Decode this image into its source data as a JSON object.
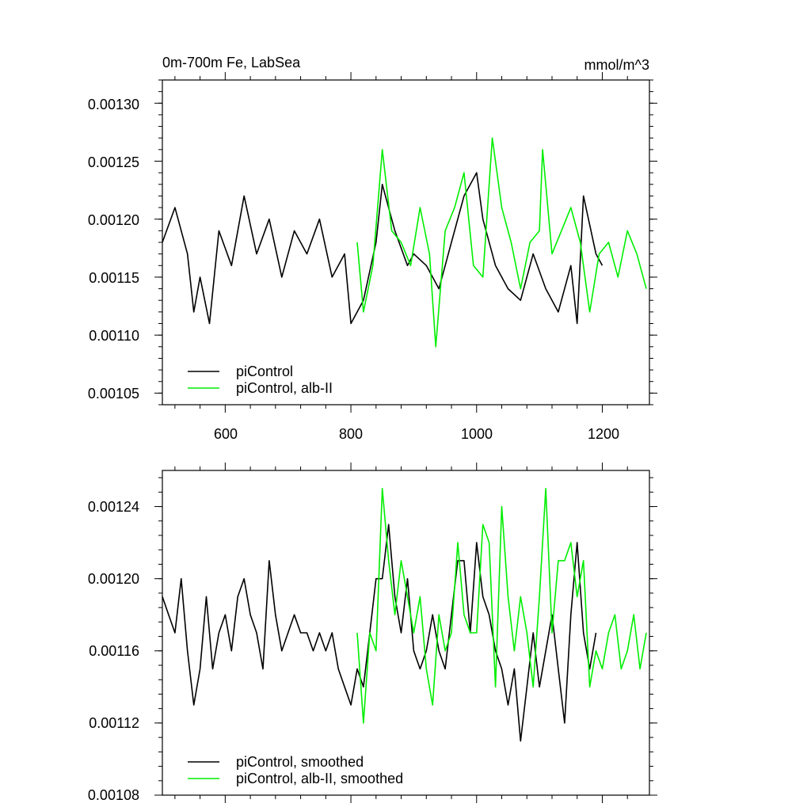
{
  "chart_data": [
    {
      "type": "line",
      "title": "0m-700m Fe, LabSea",
      "units": "mmol/m^3",
      "xlim": [
        500,
        1275
      ],
      "ylim": [
        0.00104,
        0.00132
      ],
      "xticks": [
        600,
        800,
        1000,
        1200
      ],
      "xtick_labels": [
        "600",
        "800",
        "1000",
        "1200"
      ],
      "yticks": [
        0.00105,
        0.0011,
        0.00115,
        0.0012,
        0.00125,
        0.0013
      ],
      "ytick_labels": [
        "0.00105",
        "0.00110",
        "0.00115",
        "0.00120",
        "0.00125",
        "0.00130"
      ],
      "legend_position": "bottom-left",
      "grid": false,
      "series": [
        {
          "name": "piControl",
          "color": "#000000",
          "x": [
            500,
            520,
            540,
            550,
            560,
            575,
            590,
            610,
            630,
            650,
            670,
            690,
            710,
            730,
            750,
            770,
            790,
            800,
            820,
            840,
            850,
            870,
            890,
            900,
            920,
            940,
            960,
            980,
            1000,
            1010,
            1030,
            1050,
            1070,
            1090,
            1110,
            1130,
            1150,
            1160,
            1170,
            1190,
            1200
          ],
          "y": [
            0.00118,
            0.00121,
            0.00117,
            0.00112,
            0.00115,
            0.00111,
            0.00119,
            0.00116,
            0.00122,
            0.00117,
            0.0012,
            0.00115,
            0.00119,
            0.00117,
            0.0012,
            0.00115,
            0.00117,
            0.00111,
            0.00113,
            0.00118,
            0.00123,
            0.00119,
            0.00116,
            0.00117,
            0.00116,
            0.00114,
            0.00118,
            0.00122,
            0.00124,
            0.0012,
            0.00116,
            0.00114,
            0.00113,
            0.00117,
            0.00114,
            0.00112,
            0.00116,
            0.00111,
            0.00122,
            0.00117,
            0.00116
          ]
        },
        {
          "name": "piControl, alb-II",
          "color": "#00ee00",
          "x": [
            810,
            820,
            835,
            850,
            865,
            880,
            895,
            910,
            925,
            935,
            950,
            965,
            980,
            995,
            1010,
            1025,
            1040,
            1055,
            1070,
            1085,
            1100,
            1105,
            1120,
            1135,
            1150,
            1165,
            1180,
            1195,
            1210,
            1225,
            1240,
            1255,
            1270
          ],
          "y": [
            0.00118,
            0.00112,
            0.00116,
            0.00126,
            0.00119,
            0.00118,
            0.00116,
            0.00121,
            0.00117,
            0.00109,
            0.00119,
            0.00121,
            0.00124,
            0.00116,
            0.00115,
            0.00127,
            0.00121,
            0.00118,
            0.00114,
            0.00118,
            0.00119,
            0.00126,
            0.00117,
            0.00119,
            0.00121,
            0.00118,
            0.00112,
            0.00117,
            0.00118,
            0.00115,
            0.00119,
            0.00117,
            0.00114
          ]
        }
      ]
    },
    {
      "type": "line",
      "xlim": [
        500,
        1275
      ],
      "ylim": [
        0.00108,
        0.00126
      ],
      "xticks": [
        600,
        800,
        1000,
        1200
      ],
      "yticks": [
        0.00108,
        0.00112,
        0.00116,
        0.0012,
        0.00124
      ],
      "ytick_labels": [
        "0.00108",
        "0.00112",
        "0.00116",
        "0.00120",
        "0.00124"
      ],
      "legend_position": "bottom-left",
      "grid": false,
      "series": [
        {
          "name": "piControl, smoothed",
          "color": "#000000",
          "x": [
            500,
            510,
            520,
            530,
            540,
            550,
            560,
            570,
            580,
            590,
            600,
            610,
            620,
            630,
            640,
            650,
            660,
            670,
            680,
            690,
            700,
            710,
            720,
            730,
            740,
            750,
            760,
            770,
            780,
            790,
            800,
            810,
            820,
            830,
            840,
            850,
            860,
            870,
            880,
            890,
            900,
            910,
            920,
            930,
            940,
            950,
            960,
            970,
            980,
            990,
            1000,
            1010,
            1020,
            1030,
            1040,
            1050,
            1060,
            1070,
            1080,
            1090,
            1100,
            1110,
            1120,
            1130,
            1140,
            1150,
            1160,
            1170,
            1180,
            1190
          ],
          "y": [
            0.00119,
            0.00118,
            0.00117,
            0.0012,
            0.00116,
            0.00113,
            0.00115,
            0.00119,
            0.00115,
            0.00117,
            0.00118,
            0.00116,
            0.00119,
            0.0012,
            0.00118,
            0.00117,
            0.00115,
            0.00121,
            0.00118,
            0.00116,
            0.00117,
            0.00118,
            0.00117,
            0.00117,
            0.00116,
            0.00117,
            0.00116,
            0.00117,
            0.00115,
            0.00114,
            0.00113,
            0.00115,
            0.00114,
            0.00117,
            0.0012,
            0.0012,
            0.00123,
            0.00119,
            0.00117,
            0.0012,
            0.00116,
            0.00115,
            0.00116,
            0.00118,
            0.00116,
            0.00115,
            0.00118,
            0.00121,
            0.00121,
            0.00117,
            0.00122,
            0.00119,
            0.00118,
            0.00116,
            0.00115,
            0.00113,
            0.00115,
            0.00111,
            0.00114,
            0.00117,
            0.00114,
            0.00116,
            0.00118,
            0.00115,
            0.00112,
            0.00118,
            0.00122,
            0.00117,
            0.00115,
            0.00117
          ]
        },
        {
          "name": "piControl, alb-II, smoothed",
          "color": "#00ee00",
          "x": [
            810,
            820,
            830,
            840,
            850,
            860,
            870,
            880,
            890,
            900,
            910,
            920,
            930,
            940,
            950,
            960,
            970,
            980,
            990,
            1000,
            1010,
            1020,
            1030,
            1040,
            1050,
            1060,
            1070,
            1080,
            1090,
            1100,
            1110,
            1120,
            1130,
            1140,
            1150,
            1160,
            1170,
            1180,
            1190,
            1200,
            1210,
            1220,
            1230,
            1240,
            1250,
            1260,
            1270
          ],
          "y": [
            0.00117,
            0.00112,
            0.00117,
            0.00116,
            0.00125,
            0.00121,
            0.00118,
            0.00121,
            0.00119,
            0.00117,
            0.00119,
            0.00115,
            0.00113,
            0.00118,
            0.00116,
            0.00117,
            0.00122,
            0.00118,
            0.00117,
            0.00117,
            0.00123,
            0.00122,
            0.00114,
            0.00124,
            0.00119,
            0.00116,
            0.00119,
            0.00117,
            0.00114,
            0.00119,
            0.00125,
            0.00117,
            0.00121,
            0.00121,
            0.00122,
            0.00119,
            0.00121,
            0.00114,
            0.00116,
            0.00115,
            0.00117,
            0.00118,
            0.00115,
            0.00116,
            0.00118,
            0.00115,
            0.00117
          ]
        }
      ]
    }
  ]
}
